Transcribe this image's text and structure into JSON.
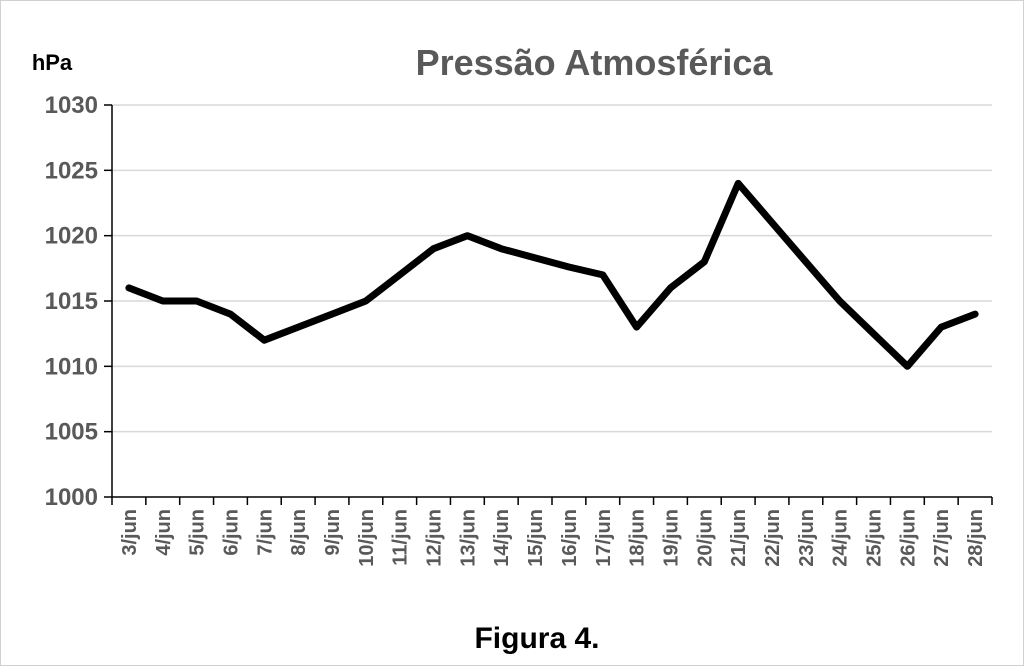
{
  "chart_data": {
    "type": "line",
    "title": "Pressão Atmosférica",
    "ylabel": "hPa",
    "xlabel": "",
    "caption": "Figura 4.",
    "ylim": [
      1000,
      1030
    ],
    "ystep": 5,
    "grid": true,
    "categories": [
      "3/jun",
      "4/jun",
      "5/jun",
      "6/jun",
      "7/jun",
      "8/jun",
      "9/jun",
      "10/jun",
      "11/jun",
      "12/jun",
      "13/jun",
      "14/jun",
      "15/jun",
      "16/jun",
      "17/jun",
      "18/jun",
      "19/jun",
      "20/jun",
      "21/jun",
      "22/jun",
      "23/jun",
      "24/jun",
      "25/jun",
      "26/jun",
      "27/jun",
      "28/jun"
    ],
    "series": [
      {
        "values": [
          1016,
          1015,
          1015,
          1014,
          1012,
          1013,
          1014,
          1015,
          1017,
          1019,
          1020,
          1019,
          1018.3,
          1017.6,
          1017,
          1013,
          1016,
          1018,
          1024,
          1021,
          1018,
          1015,
          1012.5,
          1010,
          1013,
          1014
        ]
      }
    ],
    "colors": {
      "line": "#000000",
      "grid": "#d9d9d9",
      "text": "#595959"
    }
  }
}
